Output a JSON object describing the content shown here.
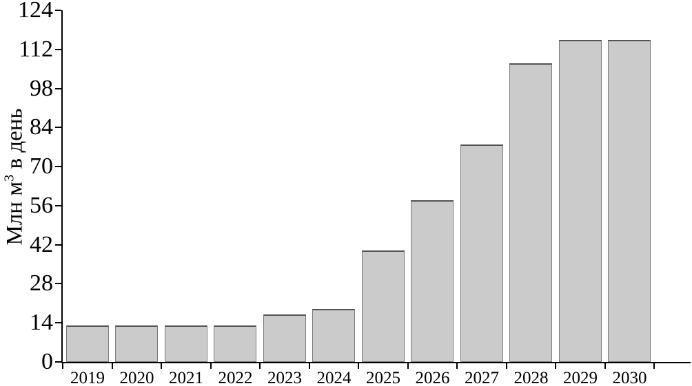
{
  "chart_data": {
    "type": "bar",
    "title": "",
    "categories": [
      "2019",
      "2020",
      "2021",
      "2022",
      "2023",
      "2024",
      "2025",
      "2026",
      "2027",
      "2028",
      "2029",
      "2030"
    ],
    "values": [
      13,
      13,
      13,
      13,
      17,
      19,
      40,
      58,
      78,
      107,
      115,
      115
    ],
    "ylabel": "Млн м3 в день",
    "ylabel_prefix": "Млн м",
    "ylabel_sup": "3",
    "ylabel_suffix": " в день",
    "xlabel": "",
    "y_ticks": [
      0,
      14,
      28,
      42,
      56,
      70,
      84,
      98,
      112,
      124
    ],
    "ylim": [
      0,
      124
    ],
    "grid": false,
    "legend_position": "none",
    "bar_fill": "#cbcbcb",
    "bar_border": "#7a7a7a",
    "axis_color": "#000000",
    "text_color": "#000000"
  }
}
